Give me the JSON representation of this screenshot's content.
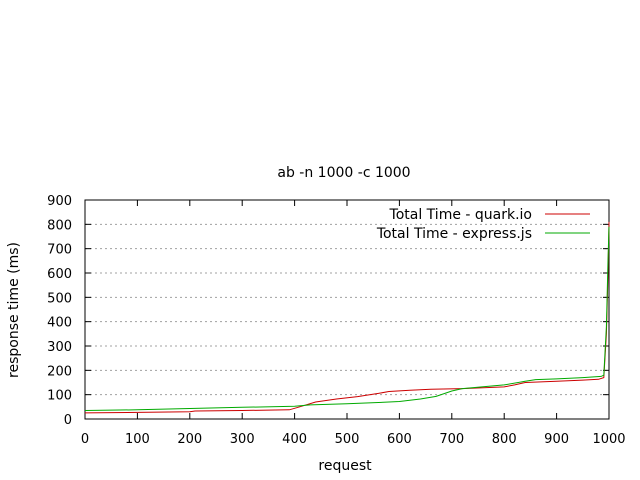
{
  "chart_data": {
    "type": "line",
    "title": "ab -n 1000 -c 1000",
    "xlabel": "request",
    "ylabel": "response time (ms)",
    "xlim": [
      0,
      1000
    ],
    "ylim": [
      0,
      900
    ],
    "xticks": [
      0,
      100,
      200,
      300,
      400,
      500,
      600,
      700,
      800,
      900,
      1000
    ],
    "yticks": [
      0,
      100,
      200,
      300,
      400,
      500,
      600,
      700,
      800,
      900
    ],
    "grid": "horizontal-dotted",
    "legend_position": "top-right",
    "series": [
      {
        "name": "Total Time - quark.io",
        "color": "#cc0000",
        "points": [
          [
            0,
            25
          ],
          [
            100,
            27
          ],
          [
            200,
            30
          ],
          [
            210,
            33
          ],
          [
            300,
            35
          ],
          [
            390,
            38
          ],
          [
            410,
            50
          ],
          [
            440,
            70
          ],
          [
            480,
            82
          ],
          [
            520,
            92
          ],
          [
            560,
            105
          ],
          [
            580,
            113
          ],
          [
            620,
            118
          ],
          [
            660,
            122
          ],
          [
            720,
            125
          ],
          [
            800,
            132
          ],
          [
            820,
            140
          ],
          [
            840,
            150
          ],
          [
            900,
            155
          ],
          [
            950,
            160
          ],
          [
            980,
            163
          ],
          [
            990,
            170
          ],
          [
            995,
            350
          ],
          [
            998,
            600
          ],
          [
            1000,
            810
          ]
        ]
      },
      {
        "name": "Total Time - express.js",
        "color": "#00aa00",
        "points": [
          [
            0,
            35
          ],
          [
            100,
            38
          ],
          [
            200,
            43
          ],
          [
            300,
            48
          ],
          [
            400,
            52
          ],
          [
            430,
            58
          ],
          [
            500,
            63
          ],
          [
            560,
            68
          ],
          [
            600,
            72
          ],
          [
            640,
            82
          ],
          [
            670,
            93
          ],
          [
            700,
            115
          ],
          [
            720,
            125
          ],
          [
            800,
            140
          ],
          [
            840,
            155
          ],
          [
            860,
            162
          ],
          [
            900,
            165
          ],
          [
            950,
            170
          ],
          [
            985,
            175
          ],
          [
            990,
            180
          ],
          [
            995,
            380
          ],
          [
            998,
            650
          ],
          [
            1000,
            790
          ]
        ]
      }
    ]
  }
}
